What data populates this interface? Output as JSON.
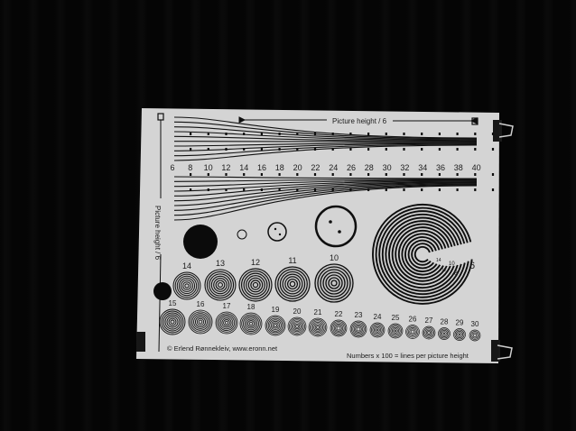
{
  "header_label": "Picture height / 6",
  "side_label": "Picture height / 6",
  "wedge_numbers": [
    "6",
    "8",
    "10",
    "12",
    "14",
    "16",
    "18",
    "20",
    "22",
    "24",
    "26",
    "28",
    "30",
    "32",
    "34",
    "36",
    "38",
    "40"
  ],
  "ring_row_top": [
    "14",
    "13",
    "12",
    "11",
    "10"
  ],
  "ring_row_bottom": [
    "15",
    "16",
    "17",
    "18",
    "19",
    "20",
    "21",
    "22",
    "23",
    "24",
    "25",
    "26",
    "27",
    "28",
    "29",
    "30"
  ],
  "spiral_labels": [
    "6",
    "8",
    "10",
    "12",
    "14"
  ],
  "footer_left": "© Erlend Rønnekleiv, www.eronn.net",
  "footer_right": "Numbers x 100 = lines per picture height"
}
